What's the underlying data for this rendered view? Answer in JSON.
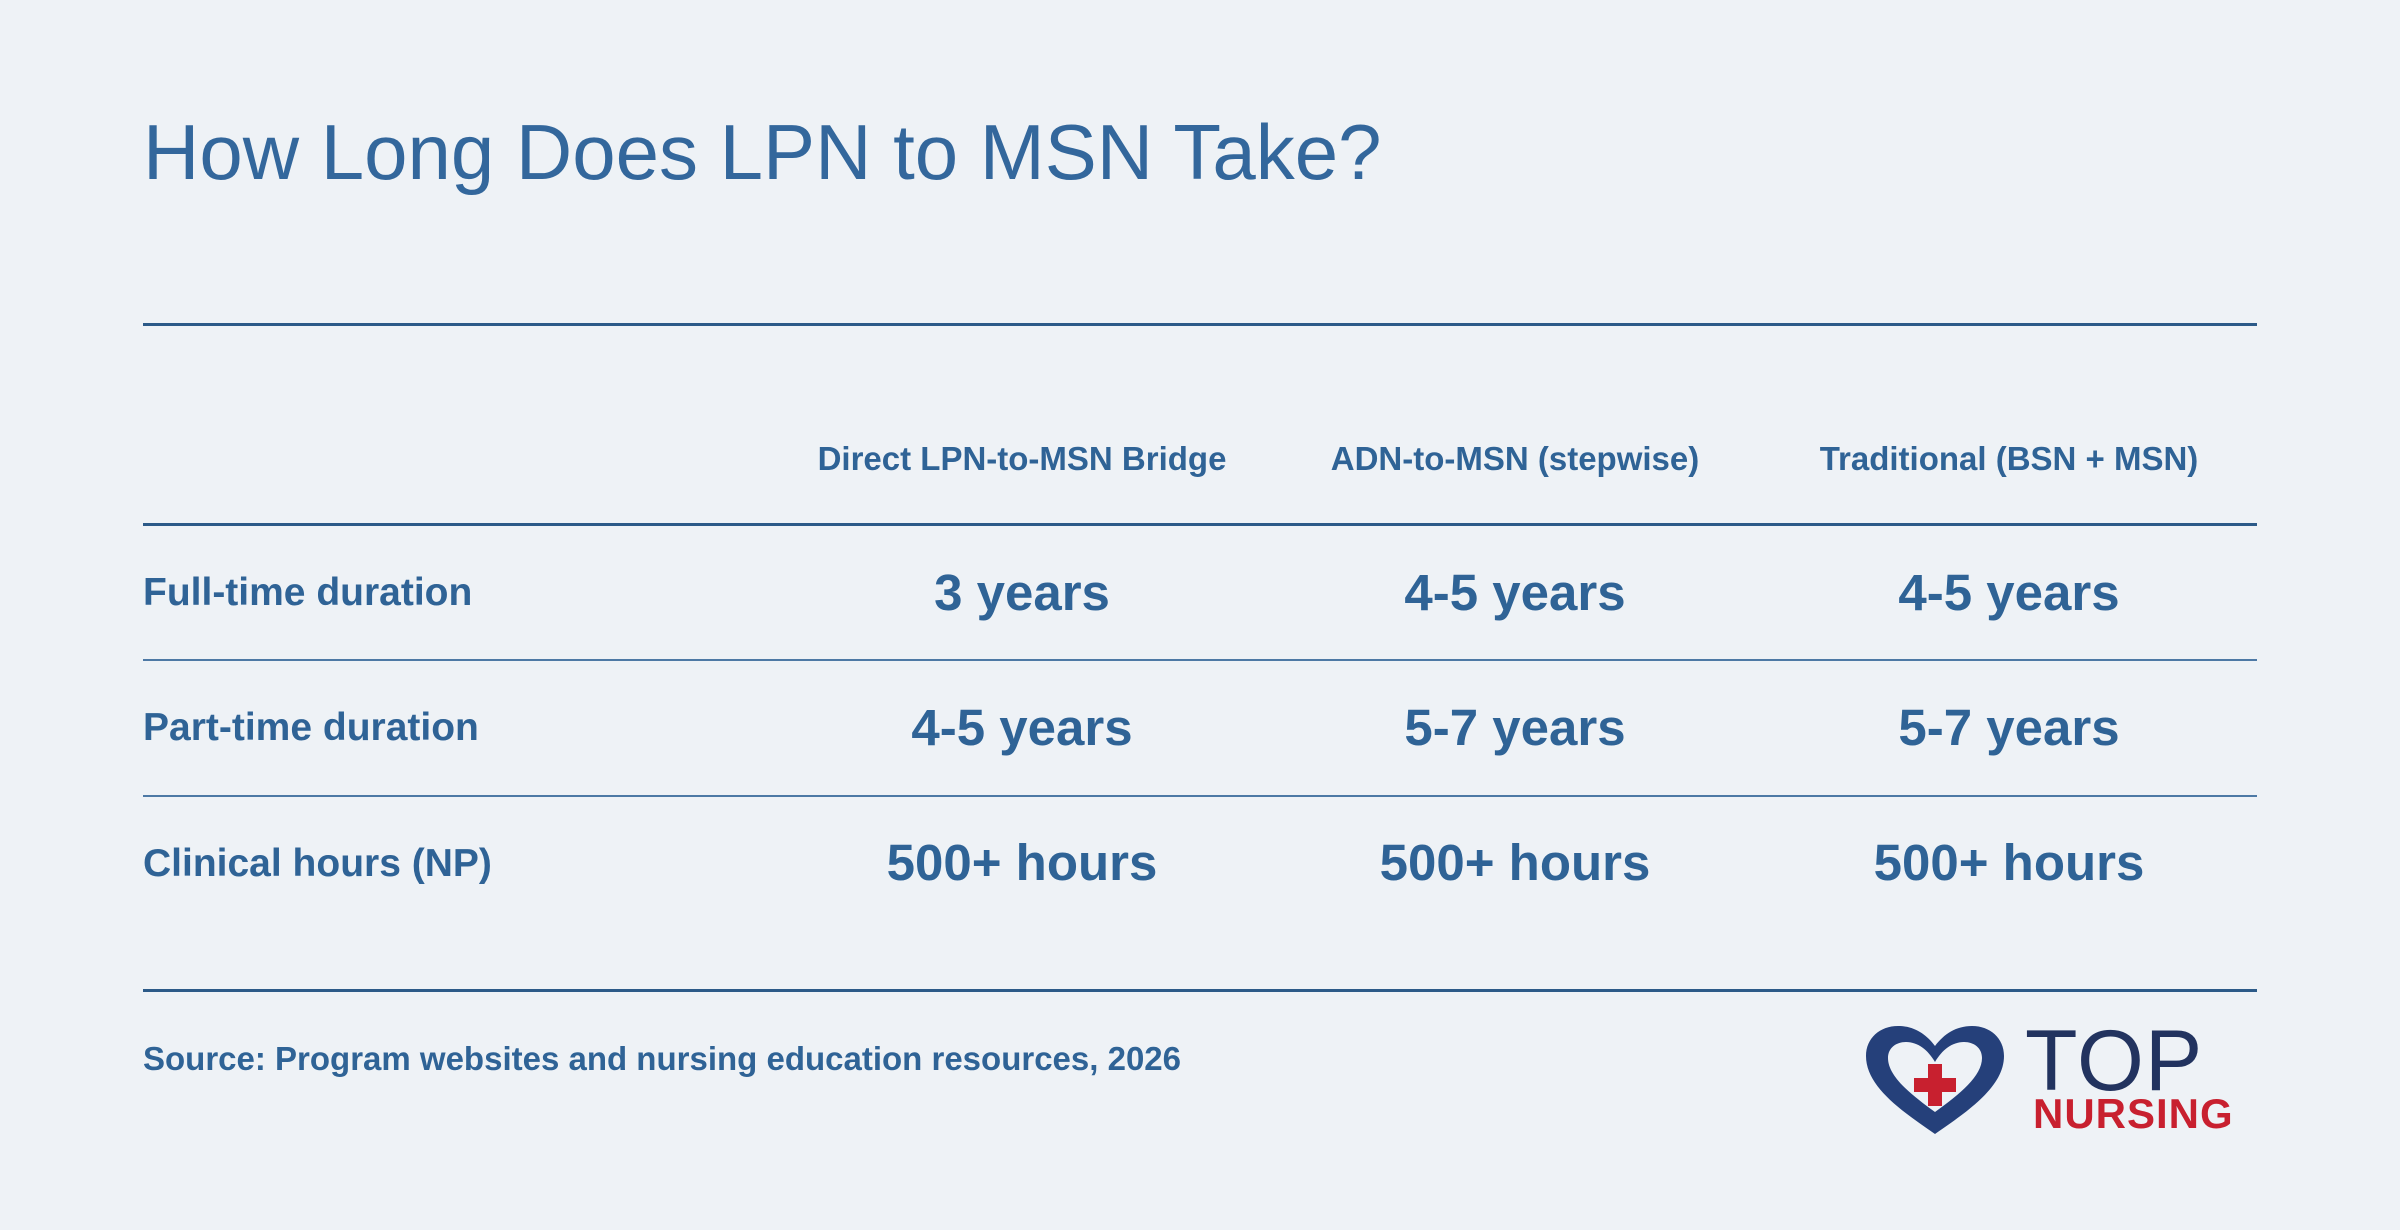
{
  "title": "How Long Does LPN to MSN Take?",
  "chart_data": {
    "type": "table",
    "columns": [
      "Direct LPN-to-MSN Bridge",
      "ADN-to-MSN (stepwise)",
      "Traditional (BSN + MSN)"
    ],
    "rows": [
      {
        "label": "Full-time duration",
        "values": [
          "3 years",
          "4-5 years",
          "4-5 years"
        ]
      },
      {
        "label": "Part-time duration",
        "values": [
          "4-5 years",
          "5-7 years",
          "5-7 years"
        ]
      },
      {
        "label": "Clinical hours (NP)",
        "values": [
          "500+ hours",
          "500+ hours",
          "500+ hours"
        ]
      }
    ]
  },
  "source": "Source: Program websites and nursing education resources, 2026",
  "logo": {
    "line1": "TOP",
    "line2": "NURSING",
    "icon": "heart-cross-icon",
    "colors": {
      "navy": "#22335f",
      "red": "#c8202f"
    }
  },
  "colors": {
    "background": "#eef2f6",
    "text": "#2f6396",
    "rule": "#2c5a88"
  }
}
